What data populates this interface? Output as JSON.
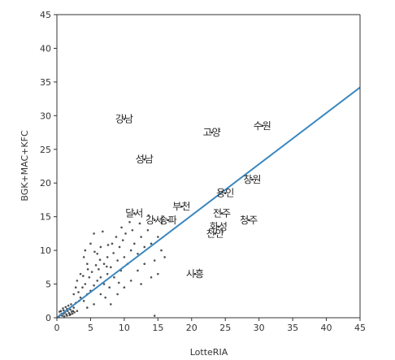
{
  "chart_data": {
    "type": "scatter",
    "title": "",
    "xlabel": "LotteRIA",
    "ylabel": "BGK+MAC+KFC",
    "xlim": [
      0,
      45
    ],
    "ylim": [
      0,
      45
    ],
    "xticks": [
      0,
      5,
      10,
      15,
      20,
      25,
      30,
      35,
      40,
      45
    ],
    "yticks": [
      0,
      5,
      10,
      15,
      20,
      25,
      30,
      35,
      40,
      45
    ],
    "grid": false,
    "colors": {
      "points": "#333333",
      "line": "#3a87c0",
      "axis": "#333333"
    },
    "fit_line": {
      "x": [
        0,
        45
      ],
      "y": [
        0,
        34.2
      ]
    },
    "labeled_points": [
      {
        "label": "강남",
        "x": 10,
        "y": 29.5
      },
      {
        "label": "수원",
        "x": 30.5,
        "y": 28.5
      },
      {
        "label": "고양",
        "x": 23,
        "y": 27.5
      },
      {
        "label": "성남",
        "x": 13,
        "y": 23.5
      },
      {
        "label": "창원",
        "x": 29,
        "y": 20.5
      },
      {
        "label": "용인",
        "x": 25,
        "y": 18.5
      },
      {
        "label": "부천",
        "x": 18.5,
        "y": 16.5
      },
      {
        "label": "달서",
        "x": 11.5,
        "y": 15.5
      },
      {
        "label": "전주",
        "x": 24.5,
        "y": 15.5
      },
      {
        "label": "강서",
        "x": 14.5,
        "y": 14.5
      },
      {
        "label": "송파",
        "x": 16.5,
        "y": 14.5
      },
      {
        "label": "청주",
        "x": 28.5,
        "y": 14.5
      },
      {
        "label": "화성",
        "x": 24,
        "y": 13.5
      },
      {
        "label": "천안",
        "x": 23.5,
        "y": 12.5
      },
      {
        "label": "시흥",
        "x": 20.5,
        "y": 6.5
      }
    ],
    "points": [
      [
        0.3,
        0.2
      ],
      [
        0.5,
        0.4
      ],
      [
        0.8,
        0.3
      ],
      [
        1.0,
        0.6
      ],
      [
        1.2,
        0.8
      ],
      [
        1.4,
        0.5
      ],
      [
        1.6,
        1.0
      ],
      [
        1.8,
        0.7
      ],
      [
        2.0,
        1.2
      ],
      [
        2.2,
        0.9
      ],
      [
        0.6,
        1.0
      ],
      [
        0.9,
        1.4
      ],
      [
        1.3,
        1.6
      ],
      [
        1.7,
        1.8
      ],
      [
        2.1,
        2.0
      ],
      [
        2.5,
        1.5
      ],
      [
        2.8,
        2.2
      ],
      [
        3.0,
        1.0
      ],
      [
        3.3,
        2.5
      ],
      [
        0.4,
        0.9
      ],
      [
        1.1,
        0.2
      ],
      [
        1.5,
        0.3
      ],
      [
        1.9,
        0.4
      ],
      [
        2.3,
        0.6
      ],
      [
        2.6,
        0.8
      ],
      [
        0.7,
        0.6
      ],
      [
        1.0,
        1.1
      ],
      [
        1.5,
        1.3
      ],
      [
        2.0,
        0.5
      ],
      [
        2.4,
        1.0
      ],
      [
        3.5,
        3.0
      ],
      [
        4.0,
        2.5
      ],
      [
        4.5,
        3.5
      ],
      [
        5.0,
        4.0
      ],
      [
        3.8,
        4.5
      ],
      [
        4.2,
        5.0
      ],
      [
        5.5,
        4.8
      ],
      [
        6.0,
        5.5
      ],
      [
        4.8,
        6.0
      ],
      [
        5.2,
        6.8
      ],
      [
        6.5,
        6.0
      ],
      [
        7.0,
        5.0
      ],
      [
        7.5,
        6.5
      ],
      [
        6.2,
        7.2
      ],
      [
        5.8,
        7.8
      ],
      [
        4.5,
        8.0
      ],
      [
        4.0,
        9.0
      ],
      [
        4.2,
        10.0
      ],
      [
        5.0,
        11.0
      ],
      [
        5.5,
        12.5
      ],
      [
        6.0,
        9.5
      ],
      [
        6.5,
        10.5
      ],
      [
        7.0,
        8.0
      ],
      [
        7.5,
        9.0
      ],
      [
        8.0,
        7.5
      ],
      [
        8.5,
        6.0
      ],
      [
        9.0,
        8.5
      ],
      [
        9.5,
        7.0
      ],
      [
        10.0,
        9.0
      ],
      [
        10.5,
        8.0
      ],
      [
        8.2,
        11.0
      ],
      [
        8.8,
        12.0
      ],
      [
        9.3,
        10.5
      ],
      [
        9.8,
        11.5
      ],
      [
        10.2,
        12.5
      ],
      [
        11.0,
        10.0
      ],
      [
        11.5,
        11.0
      ],
      [
        12.0,
        9.5
      ],
      [
        12.5,
        12.0
      ],
      [
        13.0,
        10.5
      ],
      [
        11.2,
        13.0
      ],
      [
        12.3,
        14.0
      ],
      [
        13.5,
        13.0
      ],
      [
        14.0,
        11.0
      ],
      [
        15.0,
        12.0
      ],
      [
        15.5,
        10.0
      ],
      [
        16.0,
        9.0
      ],
      [
        13.0,
        8.0
      ],
      [
        14.5,
        8.5
      ],
      [
        12.0,
        7.0
      ],
      [
        7.2,
        3.0
      ],
      [
        8.0,
        2.0
      ],
      [
        9.0,
        3.5
      ],
      [
        10.0,
        4.5
      ],
      [
        11.0,
        5.5
      ],
      [
        12.5,
        5.0
      ],
      [
        14.0,
        6.0
      ],
      [
        15.0,
        6.5
      ],
      [
        3.0,
        5.5
      ],
      [
        3.5,
        6.5
      ],
      [
        2.5,
        3.5
      ],
      [
        2.8,
        4.5
      ],
      [
        3.2,
        3.8
      ],
      [
        4.5,
        1.5
      ],
      [
        5.5,
        2.0
      ],
      [
        6.5,
        3.5
      ],
      [
        7.8,
        4.5
      ],
      [
        9.2,
        5.2
      ],
      [
        14.5,
        0.3
      ],
      [
        6.8,
        12.8
      ],
      [
        5.6,
        9.8
      ],
      [
        7.6,
        10.8
      ],
      [
        8.4,
        9.6
      ],
      [
        9.6,
        13.4
      ],
      [
        10.8,
        14.2
      ],
      [
        4.6,
        7.2
      ],
      [
        3.9,
        6.2
      ],
      [
        6.4,
        8.6
      ],
      [
        7.4,
        7.6
      ],
      [
        13.6,
        15.2
      ]
    ]
  }
}
